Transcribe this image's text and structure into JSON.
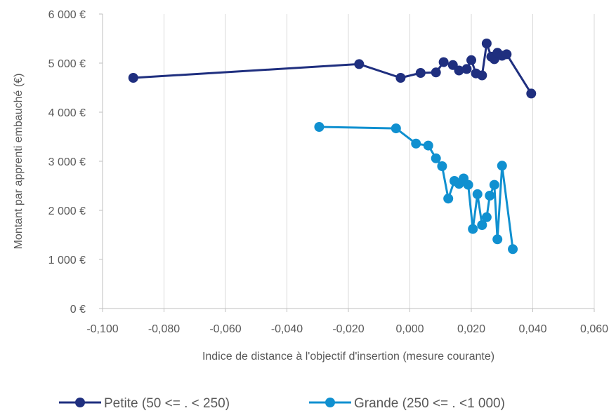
{
  "chart_data": {
    "type": "line",
    "xlabel": "Indice de distance à l'objectif d'insertion (mesure courante)",
    "ylabel": "Montant par apprenti embauché (€)",
    "xlim": [
      -0.1,
      0.06
    ],
    "ylim": [
      0,
      6000
    ],
    "x_ticks": [
      "-0,100",
      "-0,080",
      "-0,060",
      "-0,040",
      "-0,020",
      "0,000",
      "0,020",
      "0,040",
      "0,060"
    ],
    "y_ticks": [
      "0 €",
      "1 000 €",
      "2 000 €",
      "3 000 €",
      "4 000 €",
      "5 000 €",
      "6 000 €"
    ],
    "grid": "vertical",
    "legend_position": "bottom",
    "series": [
      {
        "name": "Petite (50 <= . < 250)",
        "color": "#1f2f7f",
        "points": [
          [
            -0.09,
            4700
          ],
          [
            -0.0165,
            4980
          ],
          [
            -0.003,
            4700
          ],
          [
            0.0035,
            4800
          ],
          [
            0.0085,
            4810
          ],
          [
            0.011,
            5020
          ],
          [
            0.014,
            4960
          ],
          [
            0.016,
            4850
          ],
          [
            0.0185,
            4880
          ],
          [
            0.02,
            5060
          ],
          [
            0.0215,
            4790
          ],
          [
            0.0235,
            4750
          ],
          [
            0.025,
            5400
          ],
          [
            0.0265,
            5130
          ],
          [
            0.0275,
            5080
          ],
          [
            0.0285,
            5210
          ],
          [
            0.03,
            5150
          ],
          [
            0.0315,
            5180
          ],
          [
            0.0395,
            4380
          ]
        ]
      },
      {
        "name": "Grande (250 <= . <1 000)",
        "color": "#1090d0",
        "points": [
          [
            -0.0295,
            3700
          ],
          [
            -0.0045,
            3670
          ],
          [
            0.002,
            3360
          ],
          [
            0.006,
            3320
          ],
          [
            0.0085,
            3060
          ],
          [
            0.0105,
            2900
          ],
          [
            0.0125,
            2240
          ],
          [
            0.0145,
            2600
          ],
          [
            0.016,
            2540
          ],
          [
            0.0175,
            2650
          ],
          [
            0.019,
            2520
          ],
          [
            0.0205,
            1620
          ],
          [
            0.022,
            2330
          ],
          [
            0.0235,
            1700
          ],
          [
            0.025,
            1860
          ],
          [
            0.026,
            2300
          ],
          [
            0.0275,
            2520
          ],
          [
            0.0285,
            1410
          ],
          [
            0.03,
            2910
          ],
          [
            0.0335,
            1210
          ]
        ]
      }
    ]
  }
}
